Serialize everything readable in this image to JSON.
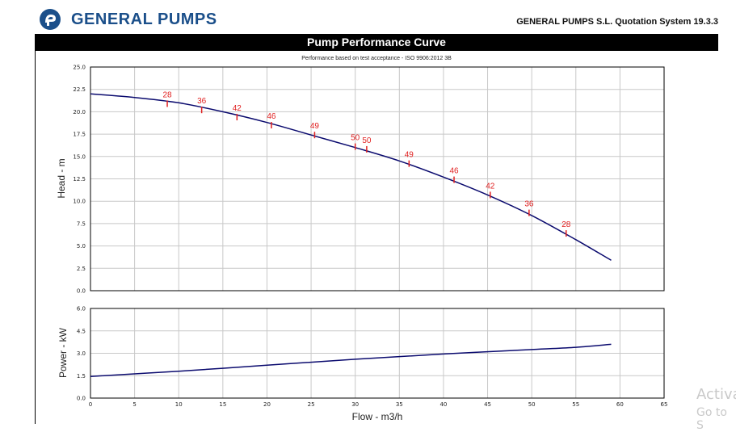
{
  "header": {
    "brand": "GENERAL PUMPS",
    "system": "GENERAL PUMPS S.L. Quotation System 19.3.3",
    "brand_color": "#1b4f8a"
  },
  "title_bar": {
    "title": "Pump Performance Curve"
  },
  "watermark": {
    "line1": "Activa",
    "line2": "Go to S"
  },
  "chart_data": [
    {
      "type": "line",
      "title": "Performance based on test acceptance - ISO 9906:2012 3B",
      "xlabel": "",
      "ylabel": "Head - m",
      "xlim": [
        0,
        65
      ],
      "ylim": [
        0,
        25
      ],
      "y_ticks": [
        "0.0",
        "2.5",
        "5.0",
        "7.5",
        "10.0",
        "12.5",
        "15.0",
        "17.5",
        "20.0",
        "22.5",
        "25.0"
      ],
      "grid": true,
      "line_color": "#0a0a6e",
      "marker_color": "#e02020",
      "series": [
        {
          "x": [
            0,
            5,
            10,
            15,
            20,
            25,
            30,
            35,
            40,
            45,
            50,
            55,
            59
          ],
          "values": [
            22.0,
            21.6,
            21.0,
            20.0,
            18.8,
            17.4,
            16.0,
            14.5,
            12.7,
            10.7,
            8.4,
            5.7,
            3.4
          ]
        }
      ],
      "efficiency_points": [
        {
          "x": 8.7,
          "y": 20.9,
          "label": "28"
        },
        {
          "x": 12.6,
          "y": 20.2,
          "label": "36"
        },
        {
          "x": 16.6,
          "y": 19.4,
          "label": "42"
        },
        {
          "x": 20.5,
          "y": 18.5,
          "label": "46"
        },
        {
          "x": 25.4,
          "y": 17.4,
          "label": "49"
        },
        {
          "x": 30.0,
          "y": 16.1,
          "label": "50"
        },
        {
          "x": 31.3,
          "y": 15.8,
          "label": "50"
        },
        {
          "x": 36.1,
          "y": 14.2,
          "label": "49"
        },
        {
          "x": 41.2,
          "y": 12.4,
          "label": "46"
        },
        {
          "x": 45.3,
          "y": 10.7,
          "label": "42"
        },
        {
          "x": 49.7,
          "y": 8.7,
          "label": "36"
        },
        {
          "x": 53.9,
          "y": 6.4,
          "label": "28"
        }
      ]
    },
    {
      "type": "line",
      "title": "",
      "xlabel": "Flow - m3/h",
      "ylabel": "Power - kW",
      "xlim": [
        0,
        65
      ],
      "ylim": [
        0,
        6
      ],
      "x_ticks": [
        "0",
        "5",
        "10",
        "15",
        "20",
        "25",
        "30",
        "35",
        "40",
        "45",
        "50",
        "55",
        "60",
        "65"
      ],
      "y_ticks": [
        "0.0",
        "1.5",
        "3.0",
        "4.5",
        "6.0"
      ],
      "grid": true,
      "line_color": "#0a0a6e",
      "series": [
        {
          "x": [
            0,
            10,
            20,
            30,
            40,
            50,
            55,
            59
          ],
          "values": [
            1.45,
            1.8,
            2.2,
            2.6,
            2.95,
            3.25,
            3.4,
            3.6
          ]
        }
      ]
    }
  ]
}
